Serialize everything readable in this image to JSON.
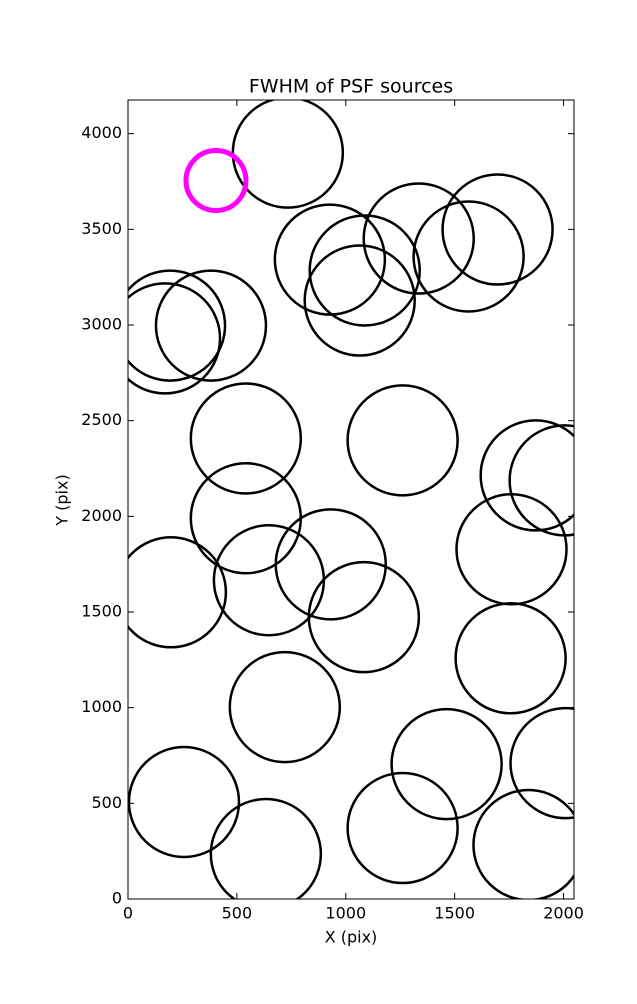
{
  "chart_data": {
    "type": "scatter",
    "title": "FWHM of PSF sources",
    "x_label": "X (pix)",
    "y_label": "Y (pix)",
    "xlim": [
      0,
      2048
    ],
    "ylim": [
      0,
      4176
    ],
    "xticks": [
      0,
      500,
      1000,
      1500,
      2000
    ],
    "yticks": [
      0,
      500,
      1000,
      1500,
      2000,
      2500,
      3000,
      3500,
      4000
    ],
    "series": [
      {
        "color": "#000000",
        "x": [
          734,
          927,
          1087,
          1064,
          1335,
          1564,
          1697,
          170,
          193,
          381,
          541,
          1261,
          1872,
          2005,
          541,
          1761,
          197,
          647,
          931,
          1083,
          1757,
          720,
          257,
          1463,
          2009,
          633,
          1261,
          1839
        ],
        "values": [
          3901,
          3342,
          3285,
          3128,
          3452,
          3358,
          3499,
          2930,
          2997,
          2997,
          2407,
          2397,
          2214,
          2188,
          1990,
          1828,
          1603,
          1666,
          1749,
          1473,
          1258,
          1003,
          507,
          705,
          710,
          235,
          371,
          282
        ]
      },
      {
        "color": "#ff00ff",
        "x": [
          404
        ],
        "values": [
          3755
        ]
      }
    ]
  }
}
